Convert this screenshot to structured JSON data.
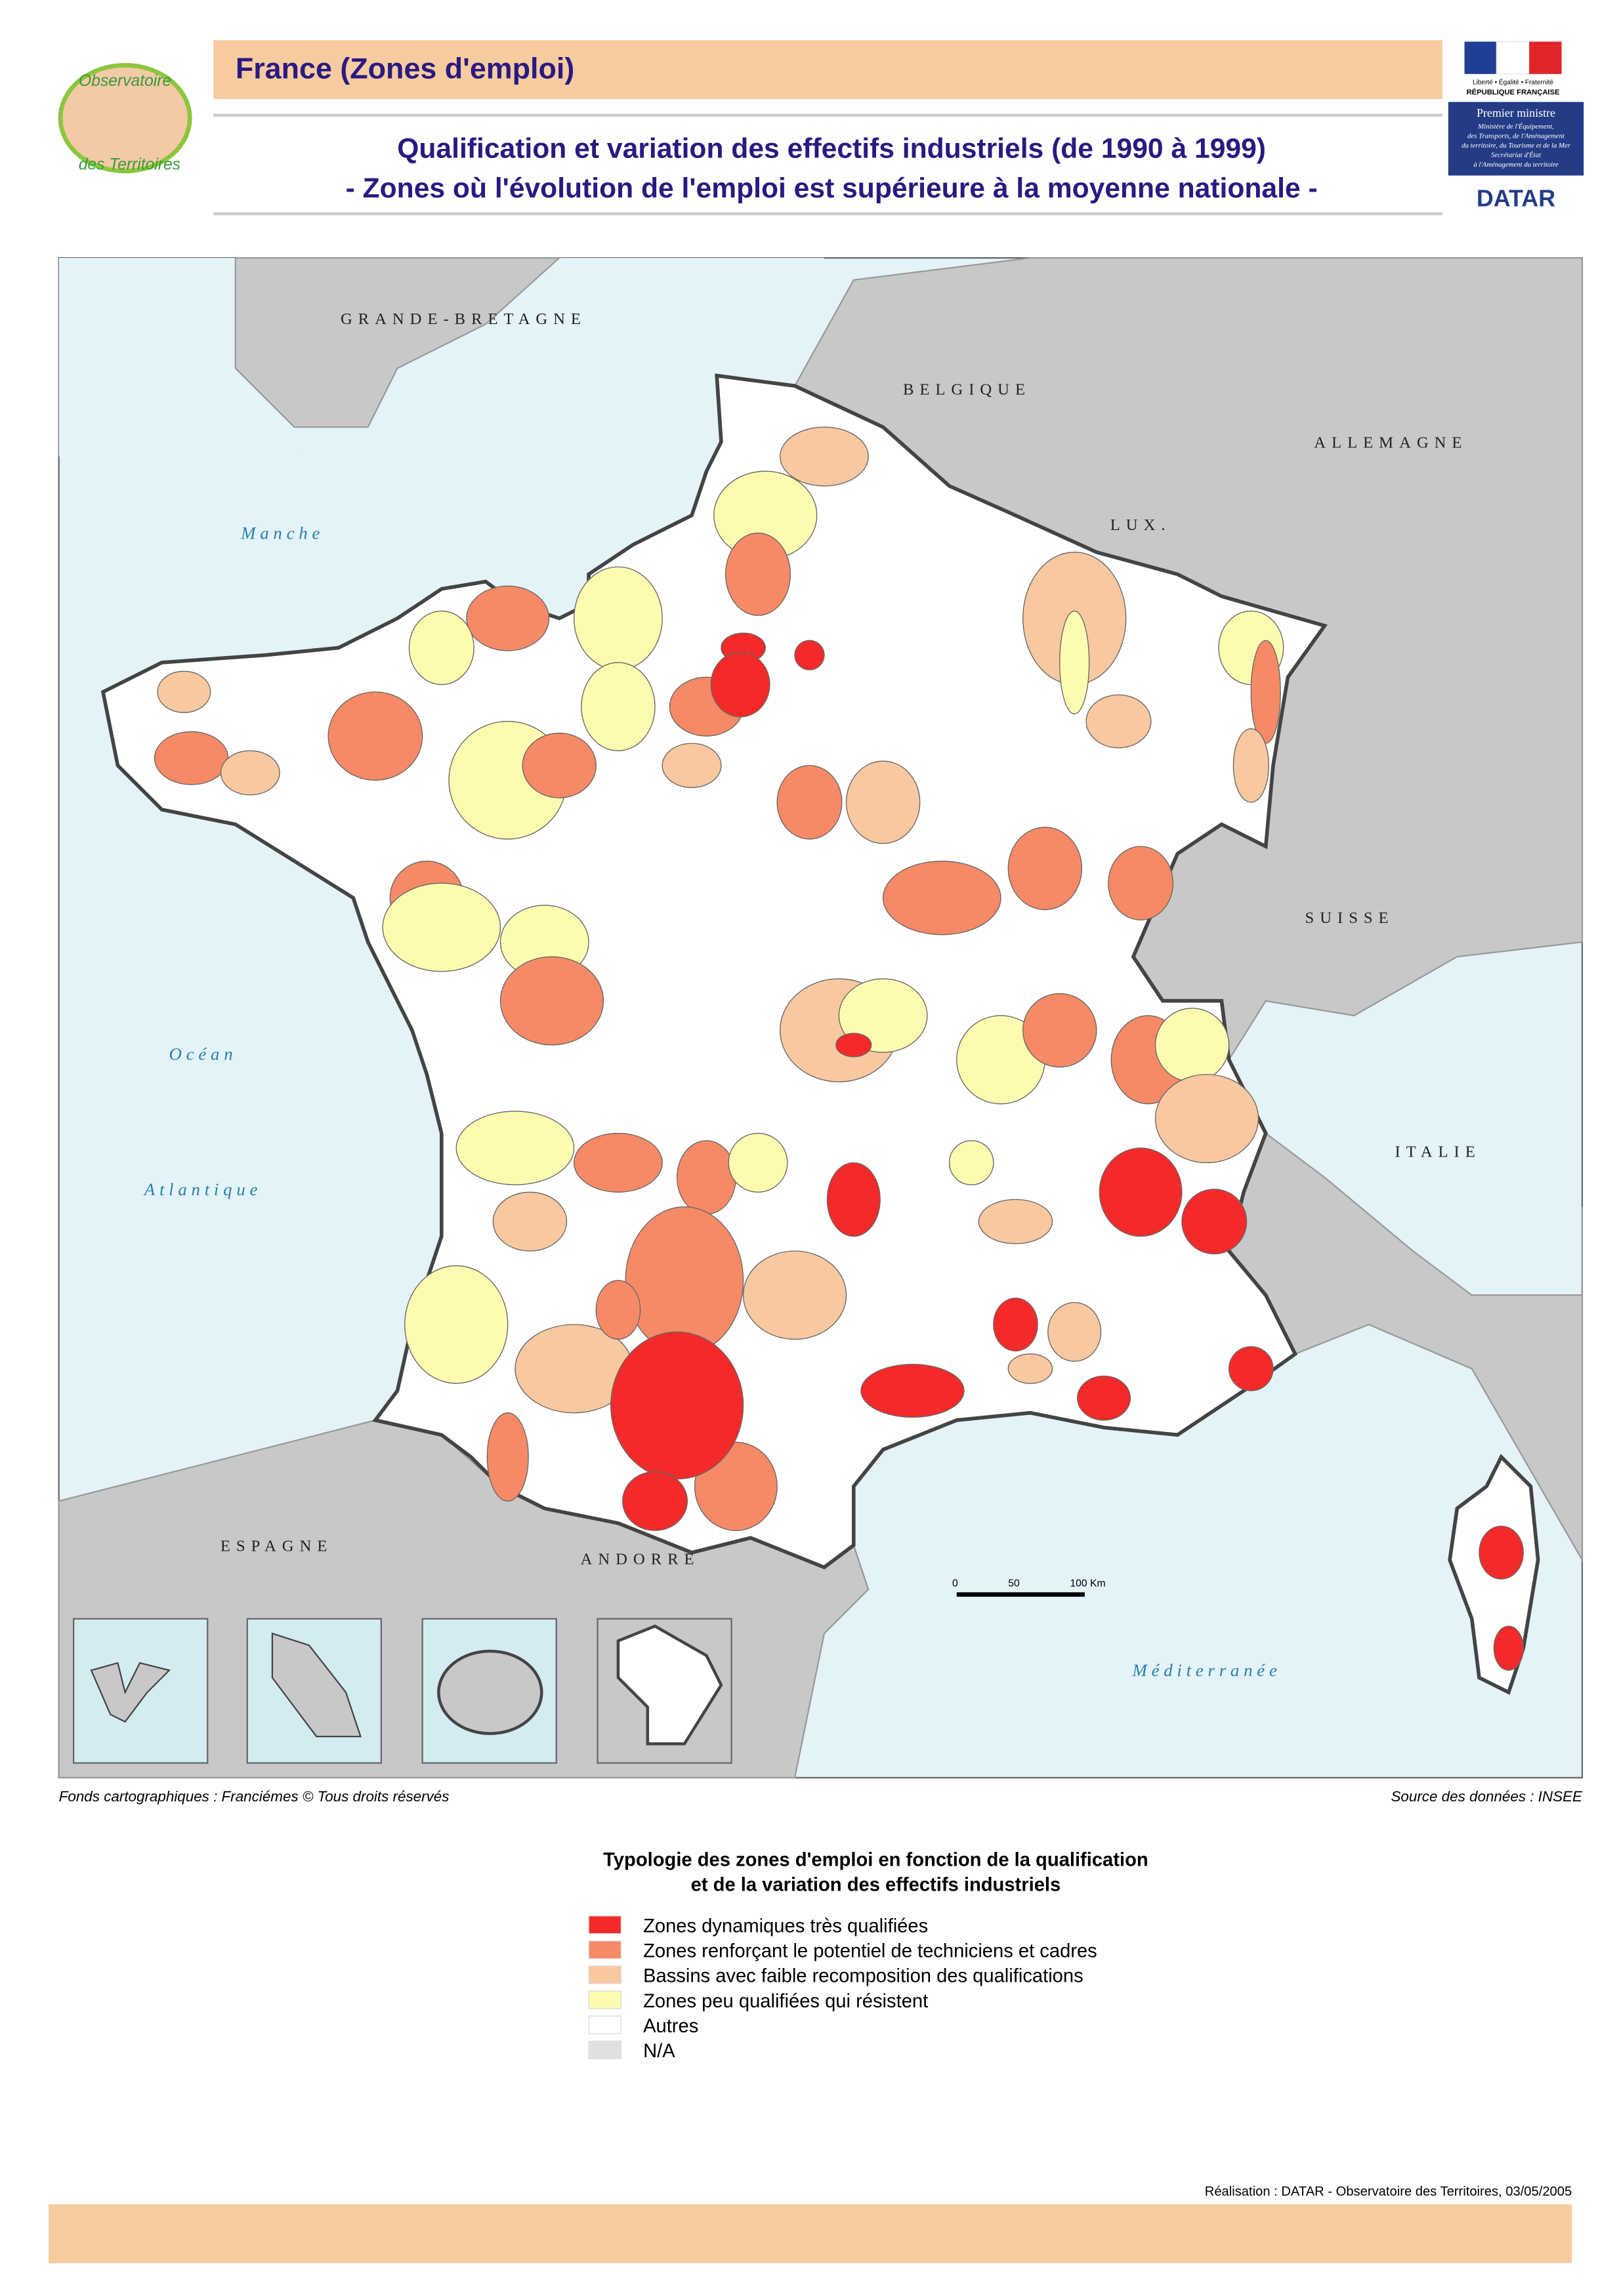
{
  "header": {
    "title": "France (Zones d'emploi)",
    "subtitle_lines": [
      "Qualification et variation des effectifs industriels (de 1990 à 1999)",
      "- Zones où l'évolution de l'emploi est supérieure à la moyenne nationale -"
    ]
  },
  "logo_left": {
    "lines": [
      "Observatoire",
      "des Territoires"
    ]
  },
  "logo_right": {
    "motto": "Liberté • Égalité • Fraternité",
    "republic": "RÉPUBLIQUE FRANÇAISE",
    "office": "Premier ministre",
    "ministry_lines": [
      "Ministère de l'Équipement,",
      "des Transports, de l'Aménagement",
      "du territoire, du Tourisme et de la Mer",
      "Secrétariat d'État",
      "à l'Aménagement du territoire"
    ],
    "brand": "DATAR"
  },
  "map": {
    "countries": [
      "GRANDE-BRETAGNE",
      "BELGIQUE",
      "ALLEMAGNE",
      "LUX.",
      "SUISSE",
      "ITALIE",
      "ESPAGNE",
      "ANDORRE"
    ],
    "seas": [
      "Manche",
      "Océan",
      "Atlantique",
      "Méditerranée"
    ],
    "scale_labels": [
      "0",
      "50",
      "100 Km"
    ]
  },
  "footer": {
    "base_maps": "Fonds cartographiques : Franciémes © Tous droits réservés",
    "source": "Source des données : INSEE",
    "credit": "Réalisation : DATAR - Observatoire des Territoires, 03/05/2005"
  },
  "legend": {
    "title_lines": [
      "Typologie des zones d'emploi en fonction de la qualification",
      "et de la variation des effectifs industriels"
    ],
    "items": [
      {
        "label": "Zones dynamiques très qualifiées",
        "color": "#f42a2a"
      },
      {
        "label": "Zones renforçant le potentiel de techniciens et cadres",
        "color": "#f68a66"
      },
      {
        "label": "Bassins avec faible recomposition des qualifications",
        "color": "#f8c8a0"
      },
      {
        "label": "Zones peu qualifiées qui résistent",
        "color": "#fdfbb0"
      },
      {
        "label": "Autres",
        "color": "#ffffff"
      },
      {
        "label": "N/A",
        "color": "#e0e0e0"
      }
    ]
  }
}
